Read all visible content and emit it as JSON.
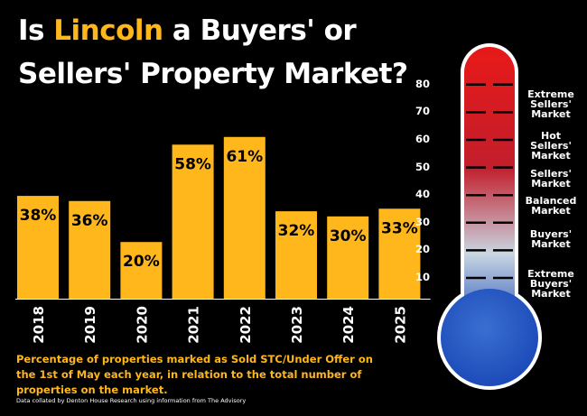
{
  "title": {
    "prefix": "Is ",
    "highlight": "Lincoln",
    "suffix": " a Buyers' or",
    "line2": "Sellers' Property Market?"
  },
  "colors": {
    "bar": "#ffb71b",
    "accent": "#ffb71b",
    "background": "#000000",
    "thermo_top": "#e81919",
    "thermo_mid": "#c9d6e2",
    "thermo_bottom": "#1a48b8"
  },
  "chart_data": {
    "type": "bar",
    "categories": [
      "2018",
      "2019",
      "2020",
      "2021",
      "2022",
      "2023",
      "2024",
      "2025"
    ],
    "values": [
      38,
      36,
      20,
      58,
      61,
      32,
      30,
      33
    ],
    "value_labels": [
      "38%",
      "36%",
      "20%",
      "58%",
      "61%",
      "32%",
      "30%",
      "33%"
    ],
    "title": "",
    "xlabel": "",
    "ylabel": "",
    "ylim": [
      0,
      80
    ]
  },
  "footnote": "Percentage of properties marked as Sold STC/Under Offer on the 1st of May each year, in relation to the total number of properties on the market.",
  "source": "Data collated by Denton House Research using information from The Advisory",
  "thermometer": {
    "scale": [
      "80",
      "70",
      "60",
      "50",
      "40",
      "30",
      "20",
      "10"
    ],
    "scale_values": [
      80,
      70,
      60,
      50,
      40,
      30,
      20,
      10
    ],
    "zones": [
      {
        "label": "Extreme Sellers' Market",
        "value": 73
      },
      {
        "label": "Hot Sellers' Market",
        "value": 58
      },
      {
        "label": "Sellers' Market",
        "value": 46
      },
      {
        "label": "Balanced Market",
        "value": 36
      },
      {
        "label": "Buyers' Market",
        "value": 24
      },
      {
        "label": "Extreme Buyers' Market",
        "value": 8
      }
    ]
  }
}
